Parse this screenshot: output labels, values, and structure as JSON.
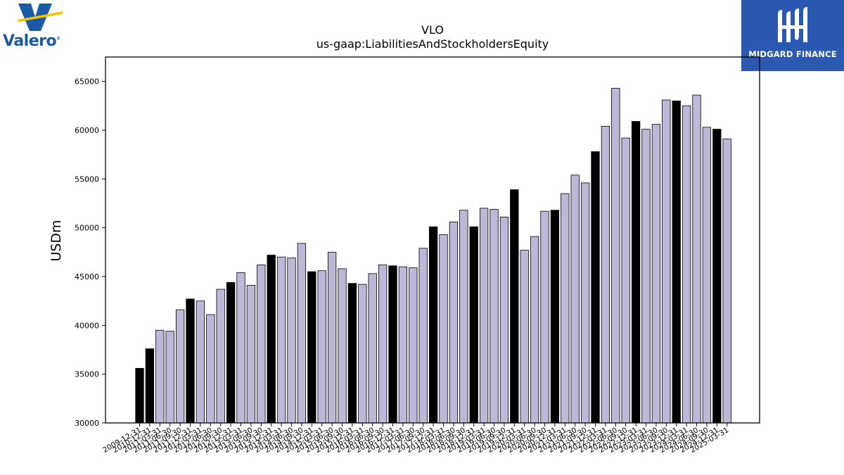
{
  "brand_left": {
    "name": "Valero",
    "colors": {
      "blue": "#1a5aa6",
      "yellow": "#f5c400"
    }
  },
  "brand_right": {
    "name": "MIDGARD FINANCE",
    "background": "#2b58b0"
  },
  "chart_data": {
    "type": "bar",
    "title": "VLO",
    "subtitle": "us-gaap:LiabilitiesAndStockholdersEquity",
    "xlabel": "",
    "ylabel": "USDm",
    "ylim": [
      30000,
      67500
    ],
    "yticks": [
      30000,
      35000,
      40000,
      45000,
      50000,
      55000,
      60000,
      65000
    ],
    "grid": false,
    "colors": {
      "annual": "#000000",
      "quarterly": "#bcb8d8",
      "edge": "#000000"
    },
    "categories": [
      "2009-12-31",
      "2010-12-31",
      "2011-03-31",
      "2011-06-30",
      "2011-09-30",
      "2011-12-31",
      "2012-03-31",
      "2012-06-30",
      "2012-09-30",
      "2012-12-31",
      "2013-03-31",
      "2013-06-30",
      "2013-09-30",
      "2013-12-31",
      "2014-03-31",
      "2014-06-30",
      "2014-09-30",
      "2014-12-31",
      "2015-03-31",
      "2015-06-30",
      "2015-09-30",
      "2015-12-31",
      "2016-03-31",
      "2016-06-30",
      "2016-09-30",
      "2016-12-31",
      "2017-03-31",
      "2017-06-30",
      "2017-09-30",
      "2017-12-31",
      "2018-03-31",
      "2018-06-30",
      "2018-09-30",
      "2018-12-31",
      "2019-03-31",
      "2019-06-30",
      "2019-09-30",
      "2019-12-31",
      "2020-03-31",
      "2020-06-30",
      "2020-09-30",
      "2020-12-31",
      "2021-03-31",
      "2021-06-30",
      "2021-09-30",
      "2021-12-31",
      "2022-03-31",
      "2022-06-30",
      "2022-09-30",
      "2022-12-31",
      "2023-03-31",
      "2023-06-30",
      "2023-09-30",
      "2023-12-31",
      "2024-03-31",
      "2024-06-30",
      "2024-09-30",
      "2024-12-31",
      "2025-03-31"
    ],
    "values": [
      35600,
      37600,
      39500,
      39400,
      41600,
      42700,
      42500,
      41100,
      43700,
      44400,
      45400,
      44100,
      46200,
      47200,
      47000,
      46900,
      48400,
      45500,
      45600,
      47500,
      45800,
      44300,
      44200,
      45300,
      46200,
      46100,
      46000,
      45900,
      47900,
      50100,
      49300,
      50600,
      51800,
      50100,
      52000,
      51900,
      51100,
      53900,
      47700,
      49100,
      51700,
      51800,
      53500,
      55400,
      54600,
      57800,
      60400,
      64300,
      59200,
      60900,
      60100,
      60600,
      63100,
      63000,
      62500,
      63600,
      60300,
      60100,
      59100
    ],
    "annual_flags": [
      true,
      true,
      false,
      false,
      false,
      true,
      false,
      false,
      false,
      true,
      false,
      false,
      false,
      true,
      false,
      false,
      false,
      true,
      false,
      false,
      false,
      true,
      false,
      false,
      false,
      true,
      false,
      false,
      false,
      true,
      false,
      false,
      false,
      true,
      false,
      false,
      false,
      true,
      false,
      false,
      false,
      true,
      false,
      false,
      false,
      true,
      false,
      false,
      false,
      true,
      false,
      false,
      false,
      true,
      false,
      false,
      false,
      true,
      false
    ]
  }
}
